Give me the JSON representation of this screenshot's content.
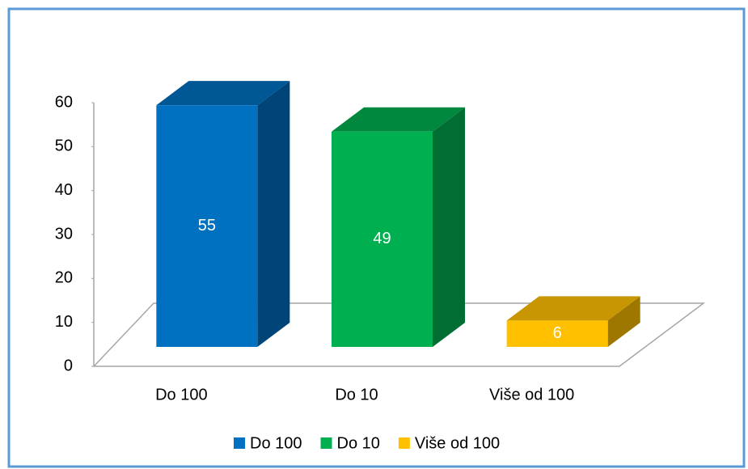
{
  "chart_data": {
    "type": "bar3d",
    "categories": [
      "Do 100",
      "Do 10",
      "Više od 100"
    ],
    "series": [
      {
        "name": "Do 100",
        "color": "#0070c0"
      },
      {
        "name": "Do 10",
        "color": "#00b050"
      },
      {
        "name": "Više od 100",
        "color": "#ffc000"
      }
    ],
    "values": [
      55,
      49,
      6
    ],
    "ylim": [
      0,
      60
    ],
    "yticks": [
      0,
      10,
      20,
      30,
      40,
      50,
      60
    ],
    "legend": "bottom"
  }
}
